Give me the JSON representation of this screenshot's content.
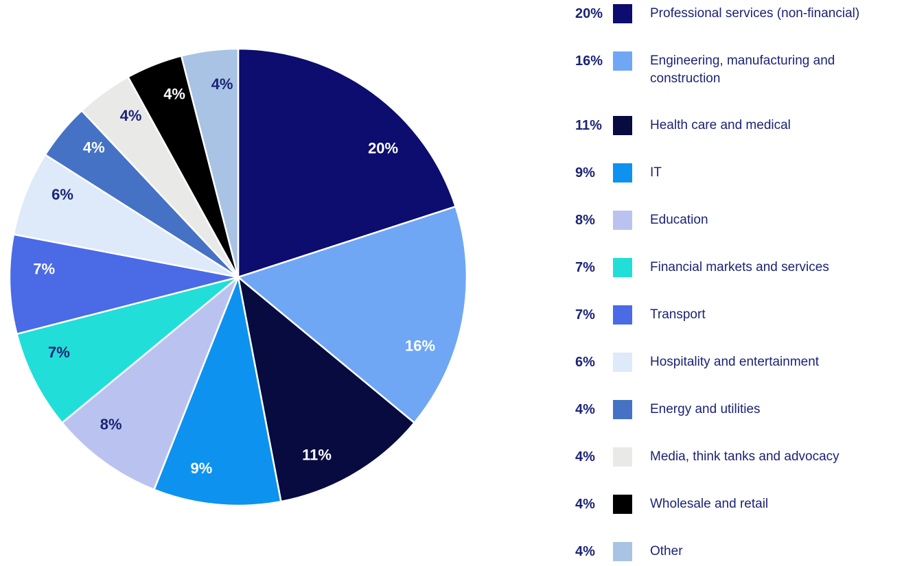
{
  "colors": {
    "background": "#FFFFFF",
    "text_navy": "#1B2376",
    "slice_separator": "#FFFFFF"
  },
  "chart_data": {
    "type": "pie",
    "title": "",
    "start_angle_deg": 0,
    "direction": "clockwise",
    "value_suffix": "%",
    "legend_position": "right",
    "total": 100,
    "slices": [
      {
        "label": "Professional services (non-financial)",
        "value": 20,
        "display": "20%",
        "color": "#0C0D6E",
        "value_label_color": "#FFFFFF"
      },
      {
        "label": "Engineering, manufacturing and construction",
        "value": 16,
        "display": "16%",
        "color": "#6FA7F5",
        "value_label_color": "#FFFFFF"
      },
      {
        "label": "Health care and medical",
        "value": 11,
        "display": "11%",
        "color": "#070B3F",
        "value_label_color": "#FFFFFF"
      },
      {
        "label": "IT",
        "value": 9,
        "display": "9%",
        "color": "#0D92F0",
        "value_label_color": "#FFFFFF"
      },
      {
        "label": "Education",
        "value": 8,
        "display": "8%",
        "color": "#BAC3F0",
        "value_label_color": "#1B2376"
      },
      {
        "label": "Financial markets and services",
        "value": 7,
        "display": "7%",
        "color": "#21DED8",
        "value_label_color": "#1B2376"
      },
      {
        "label": "Transport",
        "value": 7,
        "display": "7%",
        "color": "#4A6AE6",
        "value_label_color": "#FFFFFF"
      },
      {
        "label": "Hospitality and entertainment",
        "value": 6,
        "display": "6%",
        "color": "#DEE9FA",
        "value_label_color": "#1B2376"
      },
      {
        "label": "Energy and utilities",
        "value": 4,
        "display": "4%",
        "color": "#4572C4",
        "value_label_color": "#FFFFFF"
      },
      {
        "label": "Media, think tanks and advocacy",
        "value": 4,
        "display": "4%",
        "color": "#E9EAE8",
        "value_label_color": "#1B2376"
      },
      {
        "label": "Wholesale and retail",
        "value": 4,
        "display": "4%",
        "color": "#000000",
        "value_label_color": "#FFFFFF"
      },
      {
        "label": "Other",
        "value": 4,
        "display": "4%",
        "color": "#A8C3E4",
        "value_label_color": "#1B2376"
      }
    ]
  }
}
